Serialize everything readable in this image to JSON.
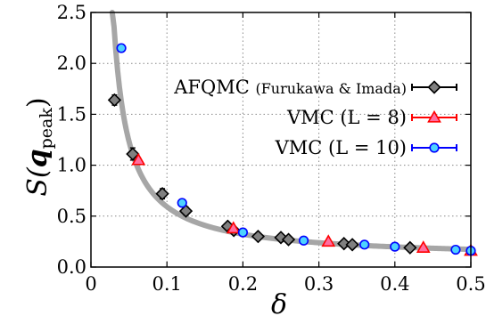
{
  "chart_data": {
    "type": "scatter",
    "xlabel": "δ",
    "ylabel": {
      "main": "S(",
      "bold": "q",
      "sub": "peak",
      "close": ")"
    },
    "xlim": [
      0,
      0.5
    ],
    "ylim": [
      0,
      2.5
    ],
    "xticks": [
      "0",
      "0.1",
      "0.2",
      "0.3",
      "0.4",
      "0.5"
    ],
    "yticks": [
      "0.0",
      "0.5",
      "1.0",
      "1.5",
      "2.0",
      "2.5"
    ],
    "grid": true,
    "legend_position": "top-right",
    "fit_curve": {
      "color": "#a6a6a6"
    },
    "series": [
      {
        "name": "AFQMC",
        "name_note": "(Furukawa & Imada)",
        "marker": "diamond",
        "color": "#000000",
        "fill": "#808080",
        "x": [
          0.031,
          0.055,
          0.094,
          0.125,
          0.18,
          0.188,
          0.22,
          0.25,
          0.26,
          0.333,
          0.344,
          0.42
        ],
        "y": [
          1.64,
          1.11,
          0.72,
          0.55,
          0.4,
          0.36,
          0.3,
          0.29,
          0.27,
          0.23,
          0.22,
          0.19
        ],
        "yerr": [
          0.05,
          0.06,
          0.05,
          0.04,
          0.03,
          0.03,
          0.02,
          0.02,
          0.02,
          0.02,
          0.02,
          0.02
        ]
      },
      {
        "name": "VMC",
        "name_note": "(L = 8)",
        "marker": "triangle",
        "color": "#ff0000",
        "fill": "#ff6ea0",
        "x": [
          0.0625,
          0.1875,
          0.3125,
          0.4375,
          0.5
        ],
        "y": [
          1.05,
          0.38,
          0.25,
          0.19,
          0.16
        ],
        "yerr": [
          0.02,
          0.01,
          0.01,
          0.01,
          0.01
        ]
      },
      {
        "name": "VMC",
        "name_note": "(L = 10)",
        "marker": "circle",
        "color": "#0000ff",
        "fill": "#4dd2ff",
        "x": [
          0.04,
          0.12,
          0.2,
          0.28,
          0.36,
          0.4,
          0.48,
          0.5
        ],
        "y": [
          2.15,
          0.63,
          0.34,
          0.26,
          0.22,
          0.2,
          0.17,
          0.16
        ],
        "yerr": [
          0.02,
          0.02,
          0.01,
          0.01,
          0.01,
          0.01,
          0.01,
          0.01
        ]
      }
    ]
  }
}
